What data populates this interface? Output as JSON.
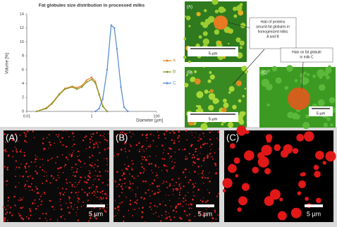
{
  "chart_data": {
    "type": "line",
    "title": "Fat globules size distribution in processed milks",
    "x_label": "Diameter [µm]",
    "y_label": "Volume [%]",
    "x": [
      0.02,
      0.04,
      0.06,
      0.1,
      0.15,
      0.25,
      0.35,
      0.5,
      0.7,
      1,
      1.3,
      1.7,
      2.2,
      3,
      4,
      5,
      6,
      8,
      10,
      13
    ],
    "series": [
      {
        "name": "A",
        "color": "#e8862a",
        "values": [
          0,
          0.5,
          1.2,
          2.5,
          3.3,
          3.6,
          3.4,
          3.7,
          4.5,
          4.9,
          4.3,
          2.5,
          0.8,
          0,
          null,
          null,
          null,
          null,
          null,
          null
        ]
      },
      {
        "name": "B",
        "color": "#8a9a2e",
        "values": [
          0,
          0.4,
          1.1,
          2.4,
          3.2,
          3.5,
          3.2,
          3.5,
          4.2,
          4.6,
          4.1,
          2.4,
          0.7,
          0,
          null,
          null,
          null,
          null,
          null,
          null
        ]
      },
      {
        "name": "C",
        "color": "#5b8fd0",
        "values": [
          null,
          null,
          null,
          null,
          null,
          null,
          null,
          null,
          null,
          null,
          0,
          0.4,
          1.8,
          6,
          12.4,
          12,
          9,
          3.5,
          0.6,
          0
        ]
      }
    ],
    "xlim": [
      0.01,
      100
    ],
    "xticks": [
      0.01,
      1,
      100
    ],
    "x_log": true,
    "ylim": [
      0,
      14
    ],
    "yticks": [
      0,
      2,
      4,
      6,
      8,
      10,
      12,
      14
    ],
    "grid": false,
    "legend": "right"
  },
  "insets": {
    "labels": [
      "(A)",
      "(B)",
      "(C)"
    ],
    "scale_bars": [
      "5 µm",
      "5 µm",
      "5 µm"
    ],
    "callouts": [
      [
        "Halo of proteins",
        "around fat globules in",
        "homogenized milks",
        "A and B"
      ],
      [
        "Halo on fat globule",
        "in milk C"
      ]
    ]
  },
  "panels": {
    "labels": [
      "(A)",
      "(B)",
      "(C)"
    ],
    "scale_bars": [
      "5 µm",
      "5 µm",
      "5 µm"
    ]
  }
}
